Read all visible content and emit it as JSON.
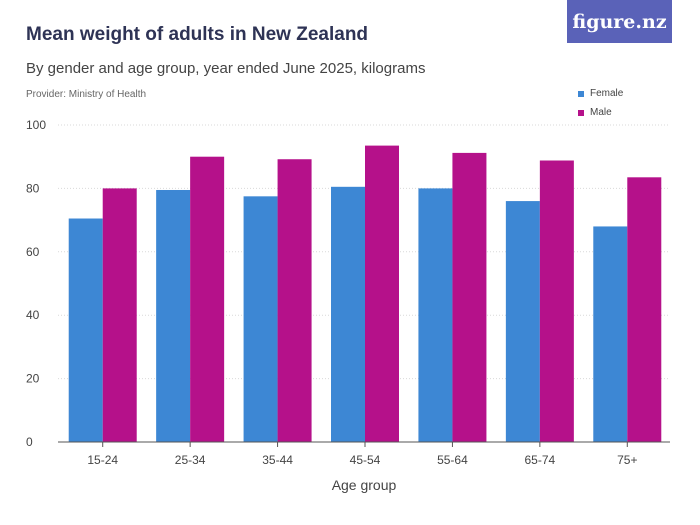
{
  "header": {
    "title": "Mean weight of adults in New Zealand",
    "subtitle": "By gender and age group, year ended June 2025, kilograms",
    "provider": "Provider: Ministry of Health",
    "logo": "figure.nz"
  },
  "colors": {
    "female": "#3d87d4",
    "male": "#b5118a",
    "grid": "#d9d9d9",
    "axis": "#555555"
  },
  "chart_data": {
    "type": "bar",
    "title": "Mean weight of adults in New Zealand",
    "subtitle": "By gender and age group, year ended June 2025, kilograms",
    "xlabel": "Age group",
    "ylabel": "",
    "ylim": [
      0,
      100
    ],
    "yticks": [
      0,
      20,
      40,
      60,
      80,
      100
    ],
    "grid": true,
    "legend_position": "top-right",
    "categories": [
      "15-24",
      "25-34",
      "35-44",
      "45-54",
      "55-64",
      "65-74",
      "75+"
    ],
    "series": [
      {
        "name": "Female",
        "color": "#3d87d4",
        "values": [
          70.5,
          79.5,
          77.5,
          80.5,
          80.0,
          76.0,
          68.0
        ]
      },
      {
        "name": "Male",
        "color": "#b5118a",
        "values": [
          80.0,
          90.0,
          89.2,
          93.5,
          91.2,
          88.8,
          83.5
        ]
      }
    ]
  }
}
